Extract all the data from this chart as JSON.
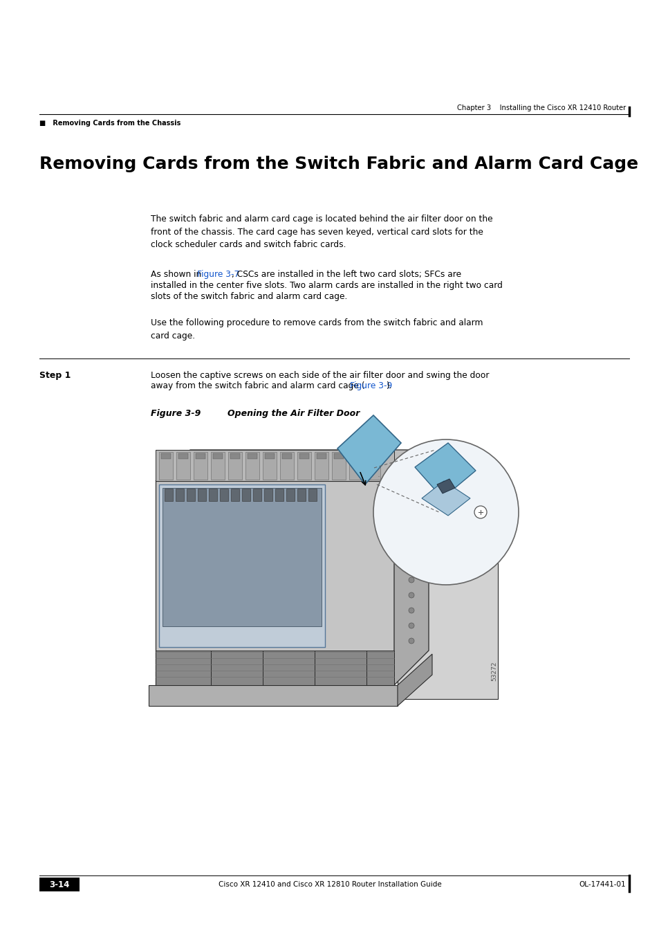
{
  "page_width": 9.54,
  "page_height": 13.51,
  "bg_color": "#ffffff",
  "header_right_text": "Chapter 3    Installing the Cisco XR 12410 Router",
  "header_left_text": "■   Removing Cards from the Chassis",
  "section_title": "Removing Cards from the Switch Fabric and Alarm Card Cage",
  "body_text_1": "The switch fabric and alarm card cage is located behind the air filter door on the\nfront of the chassis. The card cage has seven keyed, vertical card slots for the\nclock scheduler cards and switch fabric cards.",
  "body_text_2_pre": "As shown in ",
  "body_text_2_link": "Figure 3-7",
  "body_text_2_post": ", CSCs are installed in the left two card slots; SFCs are\ninstalled in the center five slots. Two alarm cards are installed in the right two card\nslots of the switch fabric and alarm card cage.",
  "body_text_3": "Use the following procedure to remove cards from the switch fabric and alarm\ncard cage.",
  "step1_label": "Step 1",
  "step1_text_pre": "Loosen the captive screws on each side of the air filter door and swing the door\naway from the switch fabric and alarm card cage (",
  "step1_link": "Figure 3-9",
  "step1_text_post": ").",
  "figure_label": "Figure 3-9",
  "figure_caption": "Opening the Air Filter Door",
  "figure_ref_color": "#1155cc",
  "footer_left_text": "Cisco XR 12410 and Cisco XR 12810 Router Installation Guide",
  "footer_page": "3-14",
  "footer_right_text": "OL-17441-01",
  "image_number": "53272"
}
